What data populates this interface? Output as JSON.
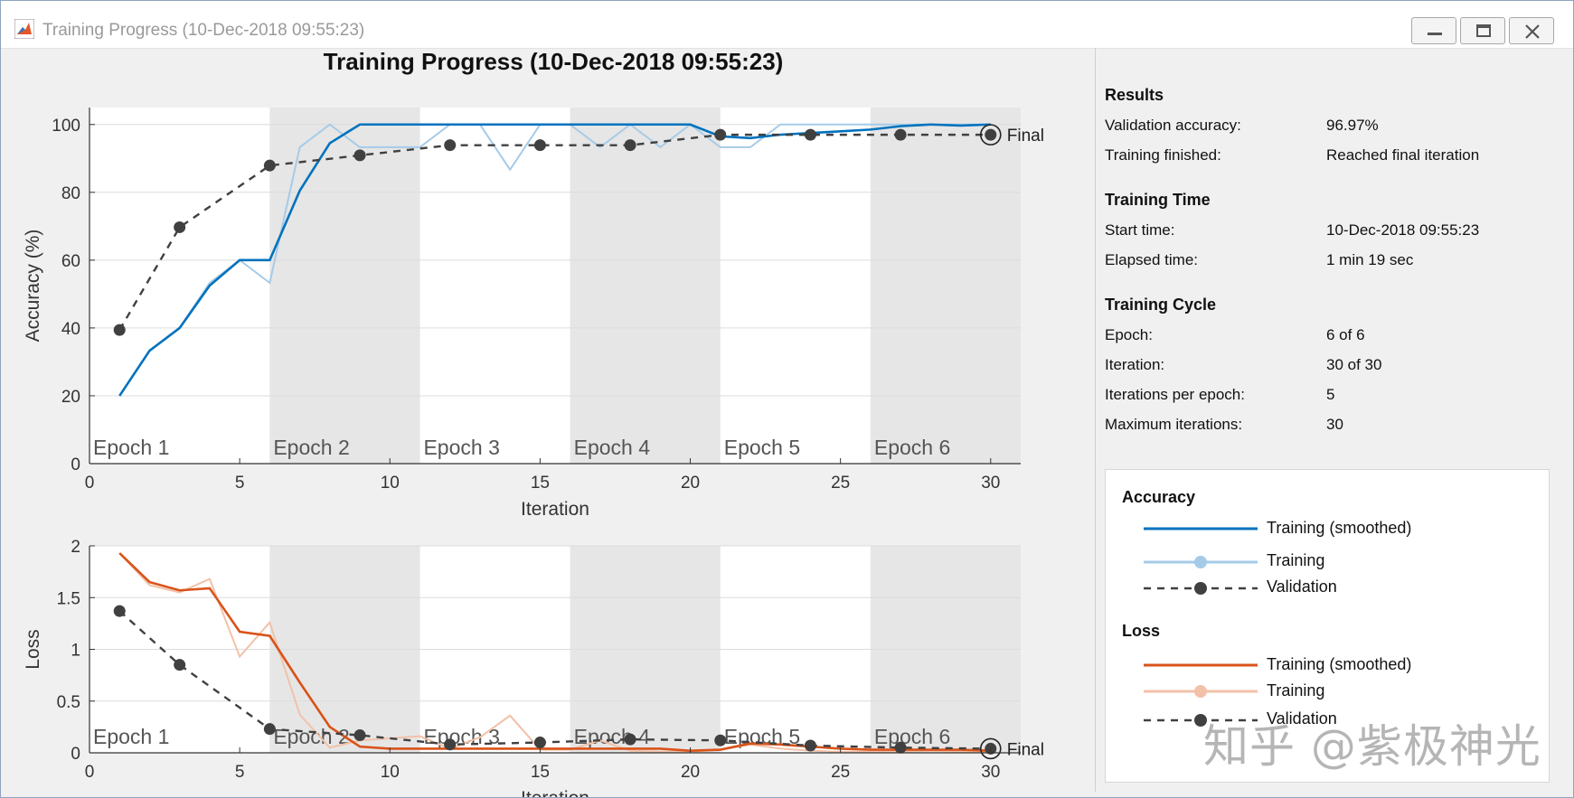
{
  "window": {
    "title": "Training Progress (10-Dec-2018 09:55:23)",
    "minimize_icon": "minimize-icon",
    "maximize_icon": "maximize-icon",
    "close_icon": "close-icon",
    "app_icon": "matlab-icon"
  },
  "colors": {
    "acc_smoothed": "#0072BD",
    "acc_raw": "#A6CBE8",
    "loss_smoothed": "#D95319",
    "loss_raw": "#F2C1A8",
    "validation": "#404040",
    "epoch_shade": "#e6e6e6"
  },
  "chart_data": [
    {
      "type": "line",
      "title": "Training Progress (10-Dec-2018 09:55:23)",
      "xlabel": "Iteration",
      "ylabel": "Accuracy (%)",
      "xlim": [
        0,
        31
      ],
      "ylim": [
        0,
        105
      ],
      "xticks": [
        0,
        5,
        10,
        15,
        20,
        25,
        30
      ],
      "yticks": [
        0,
        20,
        40,
        60,
        80,
        100
      ],
      "epochs": [
        {
          "label": "Epoch 1",
          "start": 0,
          "end": 6,
          "shaded": false
        },
        {
          "label": "Epoch 2",
          "start": 6,
          "end": 11,
          "shaded": true
        },
        {
          "label": "Epoch 3",
          "start": 11,
          "end": 16,
          "shaded": false
        },
        {
          "label": "Epoch 4",
          "start": 16,
          "end": 21,
          "shaded": true
        },
        {
          "label": "Epoch 5",
          "start": 21,
          "end": 26,
          "shaded": false
        },
        {
          "label": "Epoch 6",
          "start": 26,
          "end": 31,
          "shaded": true
        }
      ],
      "series": [
        {
          "name": "Training (smoothed)",
          "x": [
            1,
            2,
            3,
            4,
            5,
            6,
            7,
            8,
            9,
            10,
            11,
            12,
            13,
            14,
            15,
            16,
            17,
            18,
            19,
            20,
            21,
            22,
            23,
            24,
            25,
            26,
            27,
            28,
            29,
            30
          ],
          "values": [
            20,
            33.3,
            40,
            52.5,
            60,
            60,
            80.5,
            94.5,
            100,
            100,
            100,
            100,
            100,
            100,
            100,
            100,
            100,
            100,
            100,
            100,
            96.5,
            96,
            97,
            97.5,
            98,
            98.5,
            99.5,
            100,
            99.7,
            100
          ]
        },
        {
          "name": "Training",
          "x": [
            1,
            2,
            3,
            4,
            5,
            6,
            7,
            8,
            9,
            10,
            11,
            12,
            13,
            14,
            15,
            16,
            17,
            18,
            19,
            20,
            21,
            22,
            23,
            24,
            25,
            26,
            27,
            28,
            29,
            30
          ],
          "values": [
            20,
            33.3,
            40,
            53.3,
            60,
            53.3,
            93.3,
            100,
            93.3,
            93.3,
            93.3,
            100,
            100,
            86.7,
            100,
            100,
            93.3,
            100,
            93.3,
            100,
            93.3,
            93.3,
            100,
            100,
            100,
            100,
            100,
            100,
            100,
            100
          ]
        },
        {
          "name": "Validation",
          "x": [
            1,
            3,
            6,
            9,
            12,
            15,
            18,
            21,
            24,
            27,
            30
          ],
          "values": [
            39.4,
            69.7,
            87.9,
            90.9,
            93.9,
            93.9,
            93.9,
            96.97,
            96.97,
            96.97,
            96.97
          ]
        }
      ],
      "final_label": "Final"
    },
    {
      "type": "line",
      "xlabel": "Iteration",
      "ylabel": "Loss",
      "xlim": [
        0,
        31
      ],
      "ylim": [
        0,
        2
      ],
      "xticks": [
        0,
        5,
        10,
        15,
        20,
        25,
        30
      ],
      "yticks": [
        0,
        0.5,
        1,
        1.5,
        2
      ],
      "ytick_labels": [
        "0",
        "0.5",
        "1",
        "1.5",
        "2"
      ],
      "epochs": [
        {
          "label": "Epoch 1",
          "start": 0,
          "end": 6,
          "shaded": false
        },
        {
          "label": "Epoch 2",
          "start": 6,
          "end": 11,
          "shaded": true
        },
        {
          "label": "Epoch 3",
          "start": 11,
          "end": 16,
          "shaded": false
        },
        {
          "label": "Epoch 4",
          "start": 16,
          "end": 21,
          "shaded": true
        },
        {
          "label": "Epoch 5",
          "start": 21,
          "end": 26,
          "shaded": false
        },
        {
          "label": "Epoch 6",
          "start": 26,
          "end": 31,
          "shaded": true
        }
      ],
      "series": [
        {
          "name": "Training (smoothed)",
          "x": [
            1,
            2,
            3,
            4,
            5,
            6,
            7,
            8,
            9,
            10,
            11,
            12,
            13,
            14,
            15,
            16,
            17,
            18,
            19,
            20,
            21,
            22,
            23,
            24,
            25,
            26,
            27,
            28,
            29,
            30
          ],
          "values": [
            1.93,
            1.65,
            1.57,
            1.59,
            1.17,
            1.13,
            0.68,
            0.25,
            0.06,
            0.04,
            0.04,
            0.04,
            0.04,
            0.04,
            0.04,
            0.04,
            0.04,
            0.04,
            0.04,
            0.02,
            0.03,
            0.09,
            0.08,
            0.06,
            0.04,
            0.03,
            0.03,
            0.03,
            0.03,
            0.02
          ]
        },
        {
          "name": "Training",
          "x": [
            1,
            2,
            3,
            4,
            5,
            6,
            7,
            8,
            9,
            10,
            11,
            12,
            13,
            14,
            15,
            16,
            17,
            18,
            19,
            20,
            21,
            22,
            23,
            24,
            25,
            26,
            27,
            28,
            29,
            30
          ],
          "values": [
            1.93,
            1.62,
            1.55,
            1.68,
            0.93,
            1.26,
            0.37,
            0.05,
            0.12,
            0.14,
            0.16,
            0.04,
            0.15,
            0.36,
            0.03,
            0.03,
            0.12,
            0.02,
            0.01,
            0.01,
            0.03,
            0.08,
            0.04,
            0.02,
            0.01,
            0.01,
            0.01,
            0.02,
            0.01,
            0.01
          ]
        },
        {
          "name": "Validation",
          "x": [
            1,
            3,
            6,
            9,
            12,
            15,
            18,
            21,
            24,
            27,
            30
          ],
          "values": [
            1.37,
            0.85,
            0.23,
            0.17,
            0.08,
            0.1,
            0.13,
            0.12,
            0.07,
            0.05,
            0.04
          ]
        }
      ],
      "final_label": "Final"
    }
  ],
  "results": {
    "title": "Results",
    "rows": [
      {
        "k": "Validation accuracy:",
        "v": "96.97%"
      },
      {
        "k": "Training finished:",
        "v": "Reached final iteration"
      }
    ]
  },
  "training_time": {
    "title": "Training Time",
    "rows": [
      {
        "k": "Start time:",
        "v": "10-Dec-2018 09:55:23"
      },
      {
        "k": "Elapsed time:",
        "v": "1 min 19 sec"
      }
    ]
  },
  "training_cycle": {
    "title": "Training Cycle",
    "rows": [
      {
        "k": "Epoch:",
        "v": "6 of 6"
      },
      {
        "k": "Iteration:",
        "v": "30 of 30"
      },
      {
        "k": "Iterations per epoch:",
        "v": "5"
      },
      {
        "k": "Maximum iterations:",
        "v": "30"
      }
    ]
  },
  "legend": {
    "accuracy_title": "Accuracy",
    "loss_title": "Loss",
    "acc_items": [
      "Training (smoothed)",
      "Training",
      "Validation"
    ],
    "loss_items": [
      "Training (smoothed)",
      "Training",
      "Validation"
    ]
  },
  "watermark": "知乎 @紫极神光"
}
